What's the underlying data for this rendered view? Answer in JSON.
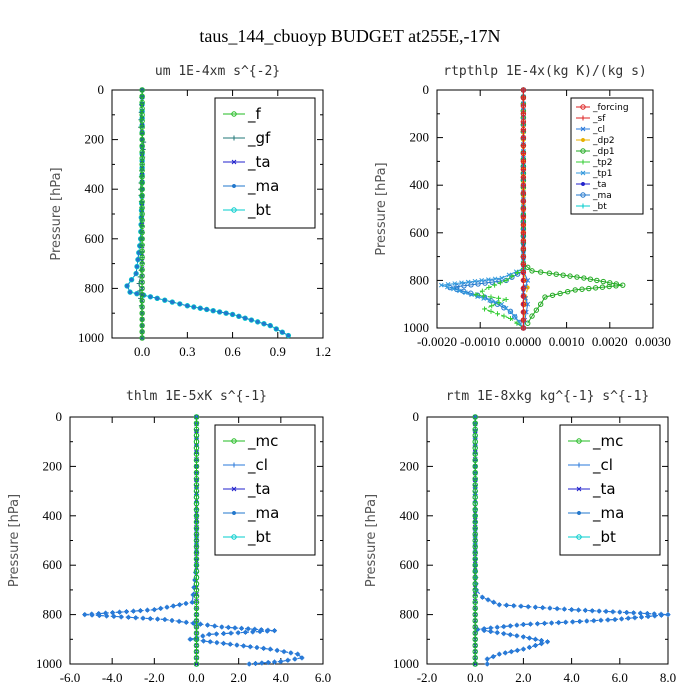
{
  "figure_title": "taus_144_cbuoyp  BUDGET at255E,-17N",
  "colors": {
    "f": "#22bb22",
    "gf": "#227777",
    "ta": "#2222cc",
    "ma": "#2277cc",
    "bt": "#00cccc",
    "forcing": "#dd2222",
    "sf": "#dd2222",
    "cl": "#2a7adb",
    "dp2": "#e8b000",
    "dp1": "#22aa22",
    "tp2": "#33cc33",
    "tp1": "#3399dd",
    "mc": "#22bb22"
  },
  "chart_data": [
    {
      "type": "line",
      "title": "um   1E-4xm s^{-2}",
      "ylabel": "Pressure [hPa]",
      "xlim": [
        -0.2,
        1.2
      ],
      "ylim": [
        1000,
        0
      ],
      "xticks": [
        "0.0",
        "0.3",
        "0.6",
        "0.9",
        "1.2"
      ],
      "xtick_values": [
        0,
        0.3,
        0.6,
        0.9,
        1.2
      ],
      "yticks": [
        "0",
        "200",
        "400",
        "600",
        "800",
        "1000"
      ],
      "legend_position": "upper-right",
      "legend_style": "large",
      "series": [
        {
          "name": "_f",
          "key": "f",
          "x": [
            0,
            0,
            0,
            0,
            0,
            0,
            0,
            0,
            0,
            0,
            0
          ],
          "y": [
            0,
            100,
            200,
            300,
            400,
            500,
            600,
            700,
            800,
            900,
            1000
          ]
        },
        {
          "name": "_gf",
          "key": "gf",
          "x": [
            0,
            -0.01,
            0.01,
            0,
            -0.01,
            0,
            0,
            0,
            -0.02,
            0,
            0
          ],
          "y": [
            0,
            150,
            210,
            300,
            400,
            500,
            600,
            700,
            780,
            900,
            1000
          ]
        },
        {
          "name": "_ta",
          "key": "ta",
          "x": [
            0,
            0,
            0,
            0,
            0,
            0,
            0,
            0,
            0
          ],
          "y": [
            0,
            200,
            400,
            600,
            750,
            800,
            850,
            900,
            1000
          ]
        },
        {
          "name": "_ma",
          "key": "ma",
          "x": [
            0,
            0,
            0,
            -0.01,
            -0.04,
            -0.1,
            -0.08,
            0.1,
            0.3,
            0.6,
            0.85,
            0.97
          ],
          "y": [
            0,
            200,
            400,
            600,
            740,
            790,
            815,
            840,
            870,
            905,
            950,
            990
          ]
        },
        {
          "name": "_bt",
          "key": "bt",
          "x": [
            0,
            0,
            0,
            -0.01,
            -0.04,
            -0.1,
            -0.08,
            0.1,
            0.3,
            0.6,
            0.85,
            0.97
          ],
          "y": [
            0,
            200,
            400,
            600,
            740,
            790,
            815,
            840,
            870,
            905,
            950,
            990
          ]
        }
      ]
    },
    {
      "type": "line",
      "title": "rtpthlp   1E-4x(kg K)/(kg s)",
      "ylabel": "Pressure [hPa]",
      "xlim": [
        -0.002,
        0.003
      ],
      "ylim": [
        1000,
        0
      ],
      "xticks": [
        "-0.0020",
        "-0.0010",
        "0.0000",
        "0.0010",
        "0.0020",
        "0.0030"
      ],
      "xtick_values": [
        -0.002,
        -0.001,
        0,
        0.001,
        0.002,
        0.003
      ],
      "yticks": [
        "0",
        "200",
        "400",
        "600",
        "800",
        "1000"
      ],
      "legend_position": "upper-right",
      "legend_style": "small",
      "series": [
        {
          "name": "_forcing",
          "key": "forcing",
          "x": [
            0,
            0,
            0,
            0,
            0,
            0,
            0,
            0,
            0,
            0,
            0
          ],
          "y": [
            0,
            100,
            200,
            300,
            400,
            500,
            600,
            700,
            800,
            900,
            1000
          ]
        },
        {
          "name": "_sf",
          "key": "sf",
          "x": [
            0,
            0,
            0,
            0,
            0,
            0,
            0,
            0,
            0,
            0,
            0
          ],
          "y": [
            0,
            100,
            200,
            300,
            400,
            500,
            600,
            700,
            800,
            900,
            1000
          ]
        },
        {
          "name": "_cl",
          "key": "cl",
          "x": [
            0,
            0,
            0,
            0,
            0.0001,
            0,
            0.0001,
            0
          ],
          "y": [
            0,
            400,
            700,
            760,
            800,
            850,
            900,
            1000
          ]
        },
        {
          "name": "_dp2",
          "key": "dp2",
          "x": [
            0,
            0,
            0,
            5e-05,
            0.0001,
            5e-05,
            0
          ],
          "y": [
            0,
            600,
            760,
            800,
            830,
            870,
            1000
          ]
        },
        {
          "name": "_dp1",
          "key": "dp1",
          "x": [
            0,
            0,
            0.0002,
            0.0006,
            0.0014,
            0.0023,
            0.0012,
            0.0005,
            0.0004,
            0.0002,
            0.0001
          ],
          "y": [
            0,
            730,
            760,
            770,
            790,
            820,
            840,
            870,
            900,
            950,
            980
          ]
        },
        {
          "name": "_tp2",
          "key": "tp2",
          "x": [
            0,
            0,
            -0.0004,
            -0.0008,
            -0.0011,
            -0.0004,
            -0.0009,
            -0.0003,
            0
          ],
          "y": [
            0,
            750,
            800,
            830,
            860,
            880,
            920,
            960,
            1000
          ]
        },
        {
          "name": "_tp1",
          "key": "tp1",
          "x": [
            0,
            0,
            -0.0005,
            -0.0019,
            -0.0012,
            -0.0005,
            -0.0002,
            0
          ],
          "y": [
            0,
            750,
            790,
            820,
            860,
            900,
            950,
            1000
          ]
        },
        {
          "name": "_ta",
          "key": "ta",
          "x": [
            0,
            0,
            0,
            0,
            0,
            0
          ],
          "y": [
            0,
            200,
            500,
            800,
            900,
            1000
          ]
        },
        {
          "name": "_ma",
          "key": "ma",
          "x": [
            0,
            0,
            -0.0004,
            -0.0017,
            -0.0009,
            -0.0003,
            0
          ],
          "y": [
            0,
            760,
            800,
            830,
            870,
            930,
            1000
          ]
        },
        {
          "name": "_bt",
          "key": "bt",
          "x": [
            0,
            0,
            0,
            0,
            0,
            0,
            0,
            0,
            0,
            0,
            0
          ],
          "y": [
            0,
            100,
            200,
            300,
            400,
            500,
            600,
            700,
            800,
            900,
            1000
          ]
        }
      ]
    },
    {
      "type": "line",
      "title": "thlm   1E-5xK s^{-1}",
      "ylabel": "Pressure [hPa]",
      "xlim": [
        -6,
        6
      ],
      "ylim": [
        1000,
        0
      ],
      "xticks": [
        "-6.0",
        "-4.0",
        "-2.0",
        "0.0",
        "2.0",
        "4.0",
        "6.0"
      ],
      "xtick_values": [
        -6,
        -4,
        -2,
        0,
        2,
        4,
        6
      ],
      "yticks": [
        "0",
        "200",
        "400",
        "600",
        "800",
        "1000"
      ],
      "legend_position": "upper-right",
      "legend_style": "large",
      "series": [
        {
          "name": "_mc",
          "key": "mc",
          "x": [
            0,
            0,
            0,
            0,
            0,
            0,
            0,
            0,
            0,
            0,
            0
          ],
          "y": [
            0,
            100,
            200,
            300,
            400,
            500,
            600,
            700,
            800,
            900,
            1000
          ]
        },
        {
          "name": "_cl",
          "key": "cl",
          "x": [
            0,
            0,
            -0.2,
            -2.0,
            -5.3,
            -1.5,
            1.2,
            3.7,
            0.6,
            -0.3,
            3.5,
            4.8,
            5.0,
            4.0,
            2.5
          ],
          "y": [
            0,
            600,
            750,
            780,
            800,
            820,
            850,
            865,
            880,
            900,
            940,
            960,
            975,
            990,
            1000
          ]
        },
        {
          "name": "_ta",
          "key": "ta",
          "x": [
            0,
            0,
            0,
            0,
            0,
            0
          ],
          "y": [
            0,
            200,
            500,
            800,
            900,
            1000
          ]
        },
        {
          "name": "_ma",
          "key": "ma",
          "x": [
            0,
            0,
            -0.2,
            -2.0,
            -5.3,
            -1.5,
            1.2,
            3.7,
            0.6,
            -0.3,
            3.5,
            4.8,
            5.0,
            4.0,
            2.5
          ],
          "y": [
            0,
            600,
            750,
            780,
            800,
            820,
            850,
            865,
            880,
            900,
            940,
            960,
            975,
            990,
            1000
          ]
        },
        {
          "name": "_bt",
          "key": "bt",
          "x": [
            0,
            0,
            0,
            0,
            0,
            0,
            0,
            0,
            0,
            0,
            0
          ],
          "y": [
            0,
            100,
            200,
            300,
            400,
            500,
            600,
            700,
            800,
            900,
            1000
          ]
        }
      ]
    },
    {
      "type": "line",
      "title": "rtm   1E-8xkg kg^{-1} s^{-1}",
      "ylabel": "Pressure [hPa]",
      "xlim": [
        -2,
        8
      ],
      "ylim": [
        1000,
        0
      ],
      "xticks": [
        "-2.0",
        "0.0",
        "2.0",
        "4.0",
        "6.0",
        "8.0"
      ],
      "xtick_values": [
        -2,
        0,
        2,
        4,
        6,
        8
      ],
      "yticks": [
        "0",
        "200",
        "400",
        "600",
        "800",
        "1000"
      ],
      "legend_position": "upper-right",
      "legend_style": "large",
      "series": [
        {
          "name": "_mc",
          "key": "mc",
          "x": [
            0,
            0,
            0,
            0,
            0,
            0,
            0,
            0,
            0,
            0,
            0
          ],
          "y": [
            0,
            100,
            200,
            300,
            400,
            500,
            600,
            700,
            800,
            900,
            1000
          ]
        },
        {
          "name": "_cl",
          "key": "cl",
          "x": [
            0,
            0,
            0.05,
            0.3,
            1.0,
            4.0,
            8.0,
            5.8,
            2.0,
            0.1,
            2.0,
            3.0,
            2.0,
            1.0,
            0.5,
            0.5
          ],
          "y": [
            0,
            600,
            700,
            730,
            760,
            780,
            800,
            820,
            840,
            860,
            890,
            910,
            940,
            960,
            980,
            1000
          ]
        },
        {
          "name": "_ta",
          "key": "ta",
          "x": [
            0,
            0,
            0,
            0,
            0,
            0
          ],
          "y": [
            0,
            200,
            500,
            800,
            900,
            1000
          ]
        },
        {
          "name": "_ma",
          "key": "ma",
          "x": [
            0,
            0,
            0.05,
            0.3,
            1.0,
            4.0,
            8.0,
            5.8,
            2.0,
            0.1,
            2.0,
            3.0,
            2.0,
            1.0,
            0.5,
            0.5
          ],
          "y": [
            0,
            600,
            700,
            730,
            760,
            780,
            800,
            820,
            840,
            860,
            890,
            910,
            940,
            960,
            980,
            1000
          ]
        },
        {
          "name": "_bt",
          "key": "bt",
          "x": [
            0,
            0,
            0,
            0,
            0,
            0,
            0,
            0,
            0,
            0,
            0
          ],
          "y": [
            0,
            100,
            200,
            300,
            400,
            500,
            600,
            700,
            800,
            900,
            1000
          ]
        }
      ]
    }
  ]
}
